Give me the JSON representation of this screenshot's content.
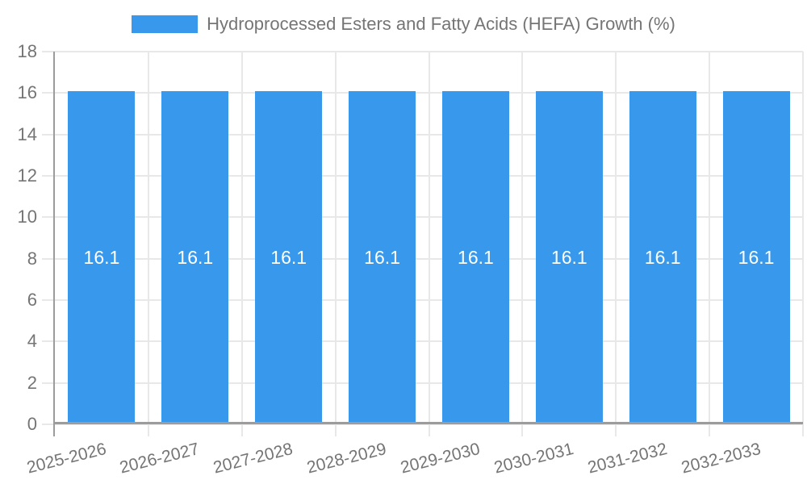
{
  "legend": {
    "label": "Hydroprocessed Esters and Fatty Acids (HEFA) Growth (%)"
  },
  "colors": {
    "bar": "#3899EC",
    "text": "#757575",
    "grid": "#E8E8E8",
    "axis": "#9C9C9C",
    "bar_value_label": "#FFFFFF",
    "background": "#FFFFFF"
  },
  "chart_data": {
    "type": "bar",
    "title": "Hydroprocessed Esters and Fatty Acids (HEFA) Growth (%)",
    "categories": [
      "2025-2026",
      "2026-2027",
      "2027-2028",
      "2028-2029",
      "2029-2030",
      "2030-2031",
      "2031-2032",
      "2032-2033"
    ],
    "values": [
      16.1,
      16.1,
      16.1,
      16.1,
      16.1,
      16.1,
      16.1,
      16.1
    ],
    "value_labels": [
      "16.1",
      "16.1",
      "16.1",
      "16.1",
      "16.1",
      "16.1",
      "16.1",
      "16.1"
    ],
    "xlabel": "",
    "ylabel": "",
    "ylim": [
      0,
      18
    ],
    "yticks": [
      0,
      2,
      4,
      6,
      8,
      10,
      12,
      14,
      16,
      18
    ],
    "grid": true,
    "legend_position": "top",
    "value_labels_position": "center-inside"
  }
}
